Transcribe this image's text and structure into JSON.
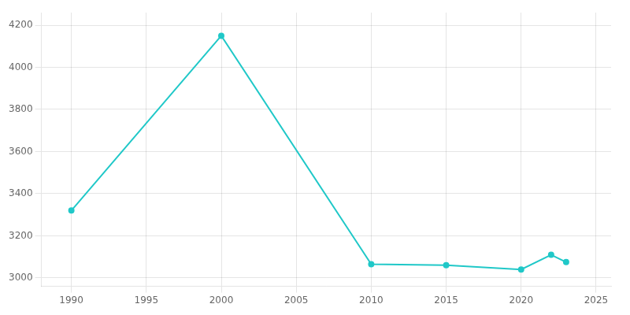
{
  "chart_data": {
    "type": "line",
    "x": [
      1990,
      2000,
      2010,
      2015,
      2020,
      2022,
      2023
    ],
    "values": [
      3320,
      4150,
      3065,
      3060,
      3040,
      3110,
      3075
    ],
    "color": "#20C8C8",
    "marker": "circle",
    "xlim": [
      1988,
      2026
    ],
    "xticks": [
      1990,
      1995,
      2000,
      2005,
      2010,
      2015,
      2020,
      2025
    ],
    "ylim": [
      2960,
      4260
    ],
    "yticks": [
      3000,
      3200,
      3400,
      3600,
      3800,
      4000,
      4200
    ],
    "grid": true
  }
}
